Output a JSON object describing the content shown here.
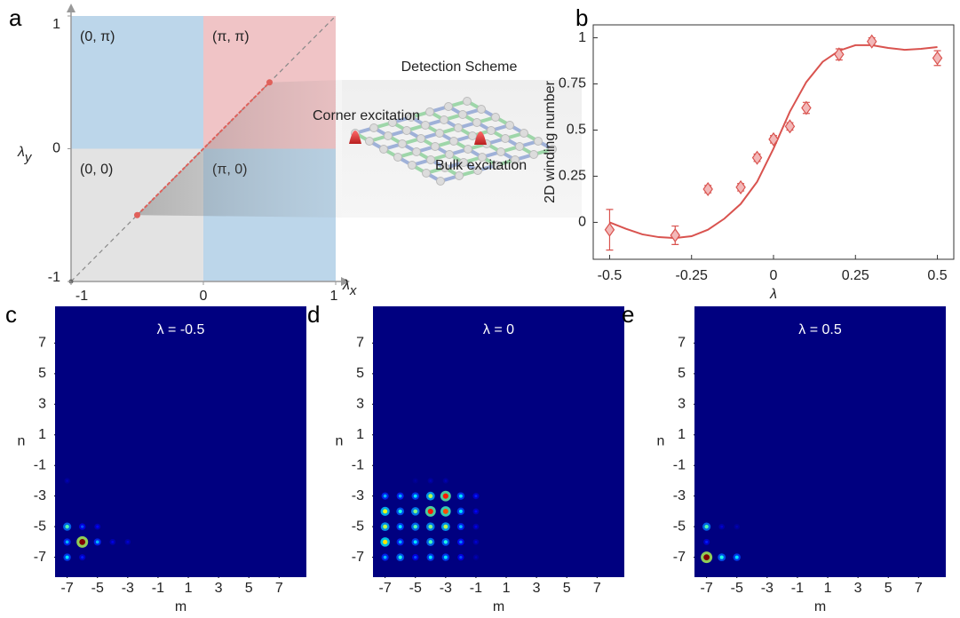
{
  "panel_labels": [
    "a",
    "b",
    "c",
    "d",
    "e"
  ],
  "chart_data": [
    {
      "type": "phase",
      "xlabel": {
        "base": "λ",
        "sub": "x"
      },
      "ylabel": {
        "base": "λ",
        "sub": "y"
      },
      "xlim": [
        -1,
        1
      ],
      "ylim": [
        -1,
        1
      ],
      "xticks": [
        -1,
        0,
        1
      ],
      "yticks": [
        -1,
        0,
        1
      ],
      "regions": [
        {
          "label": "(0, π)",
          "color": "#bcd6ea",
          "xrange": [
            -1,
            0
          ],
          "yrange": [
            0,
            1
          ]
        },
        {
          "label": "(π, π)",
          "color": "#f0c4c6",
          "xrange": [
            0,
            1
          ],
          "yrange": [
            0,
            1
          ]
        },
        {
          "label": "(0, 0)",
          "color": "#e3e3e3",
          "xrange": [
            -1,
            0
          ],
          "yrange": [
            -1,
            0
          ]
        },
        {
          "label": "(π, 0)",
          "color": "#bcd6ea",
          "xrange": [
            0,
            1
          ],
          "yrange": [
            -1,
            0
          ]
        }
      ],
      "path": [
        -0.5,
        0.5
      ],
      "path_color": "#e0605a",
      "inset": {
        "title": "Detection Scheme",
        "labels": [
          "Corner excitation",
          "Bulk excitation"
        ]
      }
    },
    {
      "type": "line",
      "xlabel": "λ",
      "ylabel": "2D winding number",
      "xlim": [
        -0.55,
        0.55
      ],
      "ylim": [
        -0.2,
        1.07
      ],
      "xticks": [
        -0.5,
        -0.25,
        0,
        0.25,
        0.5
      ],
      "yticks": [
        0,
        0.25,
        0.5,
        0.75,
        1
      ],
      "series": [
        {
          "style": "line",
          "color": "#d9534f",
          "x": [
            -0.5,
            -0.45,
            -0.4,
            -0.35,
            -0.3,
            -0.25,
            -0.2,
            -0.15,
            -0.1,
            -0.05,
            0,
            0.05,
            0.1,
            0.15,
            0.2,
            0.25,
            0.3,
            0.35,
            0.4,
            0.45,
            0.5
          ],
          "values": [
            0,
            -0.035,
            -0.065,
            -0.08,
            -0.085,
            -0.075,
            -0.04,
            0.02,
            0.1,
            0.22,
            0.4,
            0.6,
            0.76,
            0.87,
            0.93,
            0.96,
            0.96,
            0.945,
            0.935,
            0.94,
            0.95
          ]
        },
        {
          "style": "diamond",
          "color": "#d9534f",
          "fill": "#f3b8b8",
          "x": [
            -0.5,
            -0.3,
            -0.2,
            -0.1,
            -0.05,
            0,
            0.05,
            0.1,
            0.2,
            0.3,
            0.5
          ],
          "values": [
            -0.04,
            -0.07,
            0.18,
            0.19,
            0.35,
            0.45,
            0.52,
            0.62,
            0.91,
            0.98,
            0.89
          ],
          "errors": [
            0.11,
            0.05,
            0.02,
            0.02,
            0.02,
            0.02,
            0.02,
            0.03,
            0.03,
            0.02,
            0.04
          ]
        }
      ]
    },
    {
      "type": "heatmap",
      "title": "λ = -0.5",
      "xlabel": "m",
      "ylabel": "n",
      "xlim": [
        -7.8,
        8.8
      ],
      "ylim": [
        -8.3,
        9.4
      ],
      "xticks": [
        -7,
        -5,
        -3,
        -1,
        1,
        3,
        5,
        7
      ],
      "yticks": [
        7,
        5,
        3,
        1,
        -1,
        -3,
        -5,
        -7
      ],
      "x": [
        -7,
        -7,
        -7,
        -6,
        -6,
        -6,
        -5,
        -5,
        -4,
        -3,
        -7
      ],
      "y": [
        -5,
        -6,
        -7,
        -6,
        -5,
        -7,
        -6,
        -5,
        -6,
        -6,
        -2
      ],
      "values": [
        0.45,
        0.3,
        0.35,
        1.0,
        0.2,
        0.15,
        0.3,
        0.12,
        0.1,
        0.08,
        0.05
      ]
    },
    {
      "type": "heatmap",
      "title": "λ = 0",
      "xlabel": "m",
      "ylabel": "n",
      "xlim": [
        -7.8,
        8.8
      ],
      "ylim": [
        -8.3,
        9.4
      ],
      "xticks": [
        -7,
        -5,
        -3,
        -1,
        1,
        3,
        5,
        7
      ],
      "yticks": [
        7,
        5,
        3,
        1,
        -1,
        -3,
        -5,
        -7
      ],
      "x": [
        -5,
        -4,
        -3,
        -7,
        -6,
        -5,
        -4,
        -3,
        -2,
        -1,
        -7,
        -6,
        -5,
        -4,
        -3,
        -2,
        -1,
        -7,
        -6,
        -5,
        -4,
        -3,
        -2,
        -1,
        -7,
        -6,
        -5,
        -4,
        -3,
        -2,
        -1,
        -7,
        -6,
        -5,
        -4,
        -3,
        -2,
        -1
      ],
      "y": [
        -2,
        -2,
        -2,
        -3,
        -3,
        -3,
        -3,
        -3,
        -3,
        -3,
        -4,
        -4,
        -4,
        -4,
        -4,
        -4,
        -4,
        -5,
        -5,
        -5,
        -5,
        -5,
        -5,
        -5,
        -6,
        -6,
        -6,
        -6,
        -6,
        -6,
        -6,
        -7,
        -7,
        -7,
        -7,
        -7,
        -7,
        -7
      ],
      "values": [
        0.03,
        0.05,
        0.05,
        0.3,
        0.3,
        0.35,
        0.55,
        0.85,
        0.35,
        0.15,
        0.6,
        0.4,
        0.5,
        0.85,
        0.8,
        0.35,
        0.12,
        0.55,
        0.35,
        0.45,
        0.5,
        0.55,
        0.3,
        0.1,
        0.65,
        0.3,
        0.35,
        0.45,
        0.4,
        0.25,
        0.08,
        0.3,
        0.4,
        0.2,
        0.35,
        0.35,
        0.2,
        0.05
      ]
    },
    {
      "type": "heatmap",
      "title": "λ = 0.5",
      "xlabel": "m",
      "ylabel": "n",
      "xlim": [
        -7.8,
        8.8
      ],
      "ylim": [
        -8.3,
        9.4
      ],
      "xticks": [
        -7,
        -5,
        -3,
        -1,
        1,
        3,
        5,
        7
      ],
      "yticks": [
        7,
        5,
        3,
        1,
        -1,
        -3,
        -5,
        -7
      ],
      "x": [
        -7,
        -7,
        -7,
        -6,
        -5,
        -6,
        -5
      ],
      "y": [
        -7,
        -5,
        -6,
        -7,
        -7,
        -5,
        -5
      ],
      "values": [
        1.0,
        0.45,
        0.15,
        0.4,
        0.35,
        0.08,
        0.05
      ]
    }
  ]
}
